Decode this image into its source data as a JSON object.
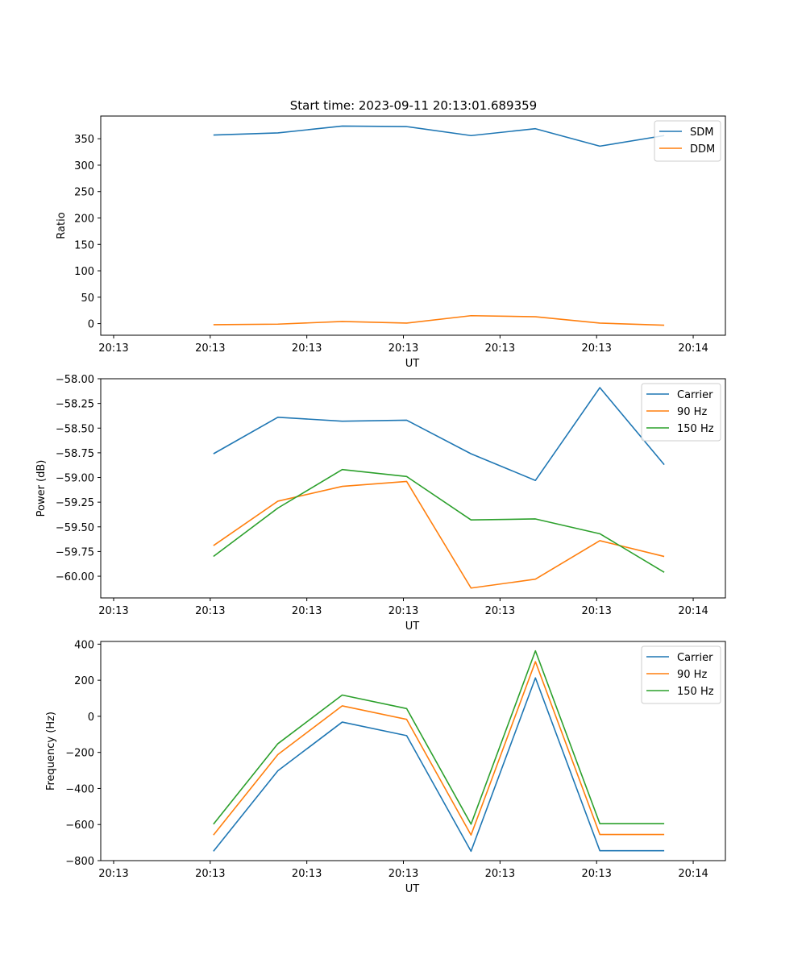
{
  "title": "Start time: 2023-09-11 20:13:01.689359",
  "colors": {
    "blue": "#1f77b4",
    "orange": "#ff7f0e",
    "green": "#2ca02c"
  },
  "chart_data": [
    {
      "type": "line",
      "title": "Start time: 2023-09-11 20:13:01.689359",
      "xlabel": "UT",
      "ylabel": "Ratio",
      "x": [
        1,
        2,
        3,
        4,
        5,
        6,
        7,
        8
      ],
      "xlim": [
        -0.75,
        8.95
      ],
      "xticks": [
        -0.55,
        0.95,
        2.45,
        3.95,
        5.45,
        6.95,
        8.45
      ],
      "xticklabels": [
        "20:13",
        "20:13",
        "20:13",
        "20:13",
        "20:13",
        "20:13",
        "20:14"
      ],
      "ylim": [
        -22,
        393
      ],
      "yticks": [
        0,
        50,
        100,
        150,
        200,
        250,
        300,
        350
      ],
      "yticklabels": [
        "0",
        "50",
        "100",
        "150",
        "200",
        "250",
        "300",
        "350"
      ],
      "legend_position": "top-right",
      "series": [
        {
          "name": "SDM",
          "color": "#1f77b4",
          "values": [
            357,
            361,
            374,
            373,
            356,
            369,
            336,
            356
          ]
        },
        {
          "name": "DDM",
          "color": "#ff7f0e",
          "values": [
            -2,
            -1,
            4,
            1,
            15,
            13,
            1,
            -3
          ]
        }
      ]
    },
    {
      "type": "line",
      "xlabel": "UT",
      "ylabel": "Power (dB)",
      "x": [
        1,
        2,
        3,
        4,
        5,
        6,
        7,
        8
      ],
      "xlim": [
        -0.75,
        8.95
      ],
      "xticks": [
        -0.55,
        0.95,
        2.45,
        3.95,
        5.45,
        6.95,
        8.45
      ],
      "xticklabels": [
        "20:13",
        "20:13",
        "20:13",
        "20:13",
        "20:13",
        "20:13",
        "20:14"
      ],
      "ylim": [
        -60.22,
        -58.0
      ],
      "yticks": [
        -60.0,
        -59.75,
        -59.5,
        -59.25,
        -59.0,
        -58.75,
        -58.5,
        -58.25,
        -58.0
      ],
      "yticklabels": [
        "−60.00",
        "−59.75",
        "−59.50",
        "−59.25",
        "−59.00",
        "−58.75",
        "−58.50",
        "−58.25",
        "−58.00"
      ],
      "legend_position": "top-right",
      "series": [
        {
          "name": "Carrier",
          "color": "#1f77b4",
          "values": [
            -58.76,
            -58.39,
            -58.43,
            -58.42,
            -58.76,
            -59.03,
            -58.09,
            -58.87
          ]
        },
        {
          "name": "90 Hz",
          "color": "#ff7f0e",
          "values": [
            -59.69,
            -59.24,
            -59.09,
            -59.04,
            -60.12,
            -60.03,
            -59.64,
            -59.8
          ]
        },
        {
          "name": "150 Hz",
          "color": "#2ca02c",
          "values": [
            -59.8,
            -59.31,
            -58.92,
            -58.99,
            -59.43,
            -59.42,
            -59.57,
            -59.96
          ]
        }
      ]
    },
    {
      "type": "line",
      "xlabel": "UT",
      "ylabel": "Frequency (Hz)",
      "x": [
        1,
        2,
        3,
        4,
        5,
        6,
        7,
        8
      ],
      "xlim": [
        -0.75,
        8.95
      ],
      "xticks": [
        -0.55,
        0.95,
        2.45,
        3.95,
        5.45,
        6.95,
        8.45
      ],
      "xticklabels": [
        "20:13",
        "20:13",
        "20:13",
        "20:13",
        "20:13",
        "20:13",
        "20:14"
      ],
      "ylim": [
        -800,
        415
      ],
      "yticks": [
        -800,
        -600,
        -400,
        -200,
        0,
        200,
        400
      ],
      "yticklabels": [
        "−800",
        "−600",
        "−400",
        "−200",
        "0",
        "200",
        "400"
      ],
      "legend_position": "top-right",
      "series": [
        {
          "name": "Carrier",
          "color": "#1f77b4",
          "values": [
            -748,
            -302,
            -32,
            -107,
            -748,
            213,
            -745,
            -745
          ]
        },
        {
          "name": "90 Hz",
          "color": "#ff7f0e",
          "values": [
            -658,
            -212,
            58,
            -17,
            -658,
            303,
            -655,
            -655
          ]
        },
        {
          "name": "150 Hz",
          "color": "#2ca02c",
          "values": [
            -598,
            -152,
            118,
            43,
            -598,
            363,
            -595,
            -595
          ]
        }
      ]
    }
  ]
}
